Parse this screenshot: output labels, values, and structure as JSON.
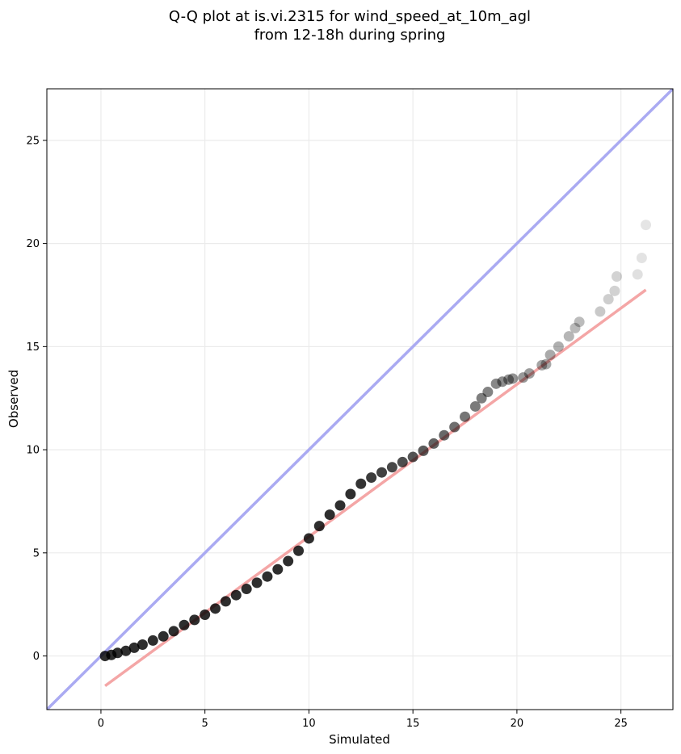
{
  "chart_data": {
    "type": "scatter",
    "title": "Q-Q plot at is.vi.2315 for wind_speed_at_10m_agl",
    "subtitle": "from 12-18h during spring",
    "xlabel": "Simulated",
    "ylabel": "Observed",
    "xlim": [
      -2.6,
      27.5
    ],
    "ylim": [
      -2.6,
      27.5
    ],
    "x_ticks": [
      0,
      5,
      10,
      15,
      20,
      25
    ],
    "y_ticks": [
      0,
      5,
      10,
      15,
      20,
      25
    ],
    "grid": true,
    "legend": "none",
    "colors": {
      "points": "#000000",
      "identity_line": "#aaaaf2",
      "fit_line": "#f4a6a6",
      "grid": "#ebebeb"
    },
    "identity_line": {
      "x": [
        -2.6,
        27.5
      ],
      "y": [
        -2.6,
        27.5
      ]
    },
    "fit_line": {
      "x": [
        0.2,
        26.2
      ],
      "y": [
        -1.45,
        17.75
      ]
    },
    "points": {
      "x": [
        0.2,
        0.5,
        0.8,
        1.2,
        1.6,
        2.0,
        2.5,
        3.0,
        3.5,
        4.0,
        4.5,
        5.0,
        5.5,
        6.0,
        6.5,
        7.0,
        7.5,
        8.0,
        8.5,
        9.0,
        9.5,
        10.0,
        10.5,
        11.0,
        11.5,
        12.0,
        12.5,
        13.0,
        13.5,
        14.0,
        14.5,
        15.0,
        15.5,
        16.0,
        16.5,
        17.0,
        17.5,
        18.0,
        18.3,
        18.6,
        19.0,
        19.3,
        19.6,
        19.8,
        20.3,
        20.6,
        21.2,
        21.4,
        21.6,
        22.0,
        22.5,
        22.8,
        23.0,
        24.0,
        24.4,
        24.7,
        24.8,
        25.8,
        26.0,
        26.2
      ],
      "y": [
        0.0,
        0.05,
        0.15,
        0.25,
        0.4,
        0.55,
        0.75,
        0.95,
        1.2,
        1.5,
        1.75,
        2.0,
        2.3,
        2.65,
        2.95,
        3.25,
        3.55,
        3.85,
        4.2,
        4.6,
        5.1,
        5.7,
        6.3,
        6.85,
        7.3,
        7.85,
        8.35,
        8.65,
        8.9,
        9.15,
        9.4,
        9.65,
        9.95,
        10.3,
        10.7,
        11.1,
        11.6,
        12.1,
        12.5,
        12.8,
        13.2,
        13.3,
        13.4,
        13.45,
        13.5,
        13.7,
        14.1,
        14.15,
        14.6,
        15.0,
        15.5,
        15.9,
        16.2,
        16.7,
        17.3,
        17.7,
        18.4,
        18.5,
        19.3,
        20.9
      ]
    }
  }
}
